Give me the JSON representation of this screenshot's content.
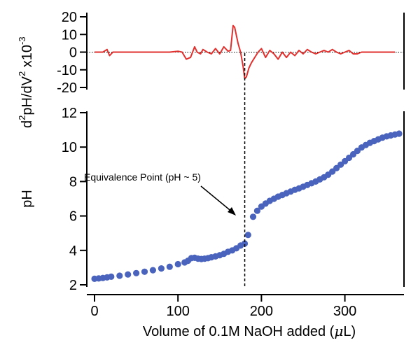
{
  "chart_data": [
    {
      "type": "line",
      "panel": "top",
      "ylabel_parts": [
        "d",
        "2",
        "pH/dV",
        "2",
        " x10",
        "-3"
      ],
      "xlim": [
        0,
        370
      ],
      "ylim": [
        -20,
        20
      ],
      "yticks": [
        -20,
        -10,
        0,
        10,
        20
      ],
      "ytick_labels": [
        "-20",
        "-10",
        "0",
        "10",
        "20"
      ],
      "zero_line": true,
      "color": "#e0312f",
      "series": [
        {
          "x": [
            0,
            10,
            15,
            18,
            22,
            30,
            40,
            50,
            60,
            70,
            80,
            90,
            100,
            105,
            110,
            115,
            120,
            123,
            127,
            130,
            135,
            140,
            145,
            150,
            155,
            160,
            163,
            166,
            168,
            172,
            175,
            178,
            180,
            182,
            185,
            188,
            192,
            196,
            200,
            205,
            210,
            215,
            220,
            225,
            230,
            235,
            240,
            245,
            250,
            255,
            260,
            265,
            270,
            275,
            280,
            285,
            290,
            295,
            300,
            305,
            310,
            315,
            320,
            325,
            330,
            340,
            350,
            360
          ],
          "y": [
            0,
            0,
            1.5,
            -2,
            0,
            0,
            0,
            0,
            0,
            0,
            0,
            0,
            0.5,
            0,
            -4,
            -3,
            3,
            0,
            -1,
            1.5,
            0,
            -1,
            2,
            -1,
            3,
            0.5,
            1,
            15,
            14,
            5,
            0,
            -8,
            -15,
            -14,
            -9,
            -6,
            -3,
            0,
            2,
            -3,
            1,
            -1,
            -4,
            0,
            -3,
            0,
            -2,
            1,
            -1,
            1.5,
            0,
            -1,
            0,
            1,
            0,
            1.5,
            0,
            -1,
            0,
            1,
            -1,
            -1,
            0,
            0,
            0,
            0,
            0,
            0
          ]
        }
      ]
    },
    {
      "type": "scatter",
      "panel": "bottom",
      "xlabel_parts": [
        "Volume of 0.1M NaOH added (",
        "μ",
        "L)"
      ],
      "ylabel": "pH",
      "xlim": [
        0,
        370
      ],
      "ylim": [
        2,
        12
      ],
      "xticks": [
        0,
        100,
        200,
        300
      ],
      "xtick_labels": [
        "0",
        "100",
        "200",
        "300"
      ],
      "yticks": [
        2,
        4,
        6,
        8,
        10,
        12
      ],
      "ytick_labels": [
        "2",
        "4",
        "6",
        "8",
        "10",
        "12"
      ],
      "color": "#4a64be",
      "annotation": "Equivalence Point (pH ~ 5)",
      "equivalence_x": 180,
      "series": [
        {
          "x": [
            0,
            5,
            10,
            15,
            20,
            30,
            40,
            50,
            60,
            70,
            80,
            90,
            100,
            108,
            112,
            116,
            120,
            124,
            128,
            132,
            136,
            140,
            145,
            150,
            155,
            160,
            165,
            170,
            175,
            180,
            184,
            190,
            195,
            200,
            205,
            210,
            215,
            220,
            225,
            230,
            235,
            240,
            245,
            250,
            255,
            260,
            265,
            270,
            275,
            280,
            285,
            290,
            295,
            300,
            305,
            310,
            315,
            320,
            325,
            330,
            335,
            340,
            345,
            350,
            355,
            360,
            365
          ],
          "y": [
            2.35,
            2.37,
            2.4,
            2.43,
            2.47,
            2.53,
            2.6,
            2.68,
            2.76,
            2.85,
            2.95,
            3.05,
            3.2,
            3.3,
            3.4,
            3.55,
            3.57,
            3.52,
            3.5,
            3.52,
            3.55,
            3.6,
            3.65,
            3.72,
            3.8,
            3.92,
            4.0,
            4.12,
            4.28,
            4.4,
            4.9,
            5.95,
            6.3,
            6.55,
            6.72,
            6.88,
            7.0,
            7.12,
            7.22,
            7.32,
            7.42,
            7.52,
            7.6,
            7.7,
            7.8,
            7.9,
            8.0,
            8.12,
            8.25,
            8.4,
            8.58,
            8.78,
            8.98,
            9.18,
            9.38,
            9.58,
            9.78,
            9.98,
            10.12,
            10.25,
            10.35,
            10.45,
            10.55,
            10.62,
            10.68,
            10.73,
            10.78
          ]
        }
      ]
    }
  ]
}
